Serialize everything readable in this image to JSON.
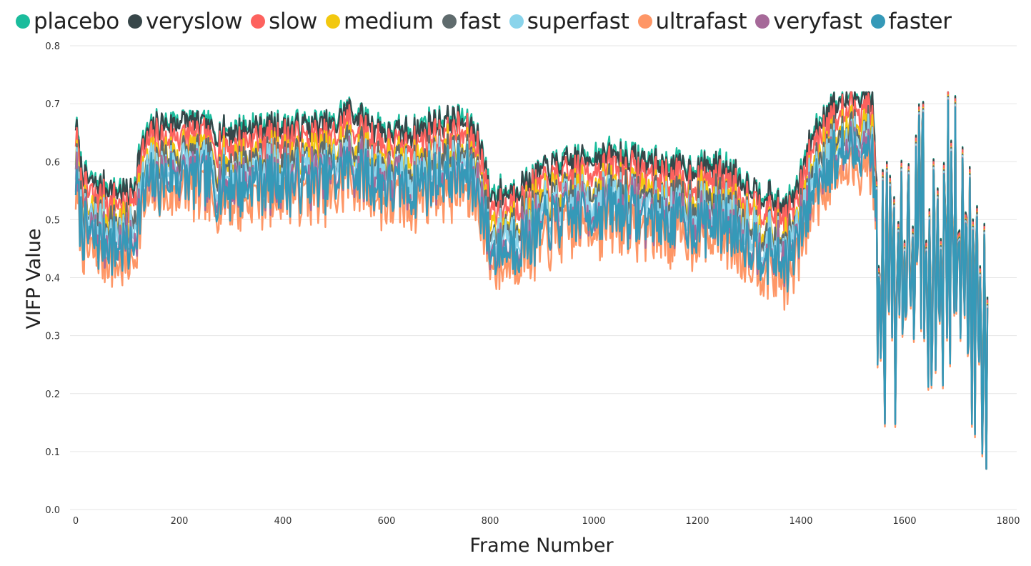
{
  "chart_data": {
    "type": "line",
    "xlabel": "Frame Number",
    "ylabel": "VIFP Value",
    "xlim": [
      0,
      1800
    ],
    "ylim": [
      0.0,
      0.8
    ],
    "x_ticks": [
      "0",
      "200",
      "400",
      "600",
      "800",
      "1000",
      "1200",
      "1400",
      "1600",
      "1800"
    ],
    "y_ticks": [
      "0.0",
      "0.1",
      "0.2",
      "0.3",
      "0.4",
      "0.5",
      "0.6",
      "0.7",
      "0.8"
    ],
    "grid": "horizontal",
    "legend_position": "top",
    "baseline_x": [
      0,
      10,
      20,
      35,
      50,
      70,
      90,
      100,
      110,
      125,
      140,
      160,
      200,
      250,
      260,
      300,
      350,
      400,
      450,
      500,
      520,
      560,
      600,
      650,
      700,
      750,
      780,
      800,
      840,
      880,
      920,
      960,
      1000,
      1050,
      1100,
      1150,
      1200,
      1250,
      1300,
      1350,
      1370,
      1390,
      1420,
      1450,
      1500,
      1530,
      1540,
      1550,
      1555,
      1565,
      1580,
      1590,
      1610,
      1630,
      1650,
      1670,
      1690,
      1710,
      1730,
      1750,
      1760
    ],
    "baseline_y": [
      0.58,
      0.5,
      0.48,
      0.47,
      0.47,
      0.46,
      0.46,
      0.45,
      0.46,
      0.53,
      0.56,
      0.57,
      0.58,
      0.57,
      0.56,
      0.56,
      0.57,
      0.57,
      0.57,
      0.57,
      0.6,
      0.58,
      0.56,
      0.56,
      0.58,
      0.58,
      0.55,
      0.45,
      0.46,
      0.48,
      0.5,
      0.51,
      0.52,
      0.52,
      0.51,
      0.5,
      0.5,
      0.5,
      0.47,
      0.44,
      0.43,
      0.45,
      0.55,
      0.6,
      0.62,
      0.63,
      0.6,
      0.3,
      0.35,
      0.4,
      0.3,
      0.36,
      0.4,
      0.5,
      0.4,
      0.42,
      0.5,
      0.4,
      0.38,
      0.3,
      0.25
    ],
    "series": [
      {
        "name": "placebo",
        "color": "#1abc9c",
        "offset": 0.095,
        "amp": 0.022,
        "seed": 11
      },
      {
        "name": "veryslow",
        "color": "#374649",
        "offset": 0.09,
        "amp": 0.022,
        "seed": 12
      },
      {
        "name": "slow",
        "color": "#fd625e",
        "offset": 0.068,
        "amp": 0.03,
        "seed": 13
      },
      {
        "name": "medium",
        "color": "#f2c80f",
        "offset": 0.04,
        "amp": 0.035,
        "seed": 14
      },
      {
        "name": "fast",
        "color": "#5f6b6d",
        "offset": 0.032,
        "amp": 0.035,
        "seed": 15
      },
      {
        "name": "superfast",
        "color": "#8ad4eb",
        "offset": 0.018,
        "amp": 0.04,
        "seed": 16
      },
      {
        "name": "ultrafast",
        "color": "#fe9666",
        "offset": -0.03,
        "amp": 0.045,
        "seed": 17
      },
      {
        "name": "veryfast",
        "color": "#a66999",
        "offset": 0.0,
        "amp": 0.045,
        "seed": 18
      },
      {
        "name": "faster",
        "color": "#3599b8",
        "offset": -0.005,
        "amp": 0.045,
        "seed": 19
      }
    ]
  }
}
